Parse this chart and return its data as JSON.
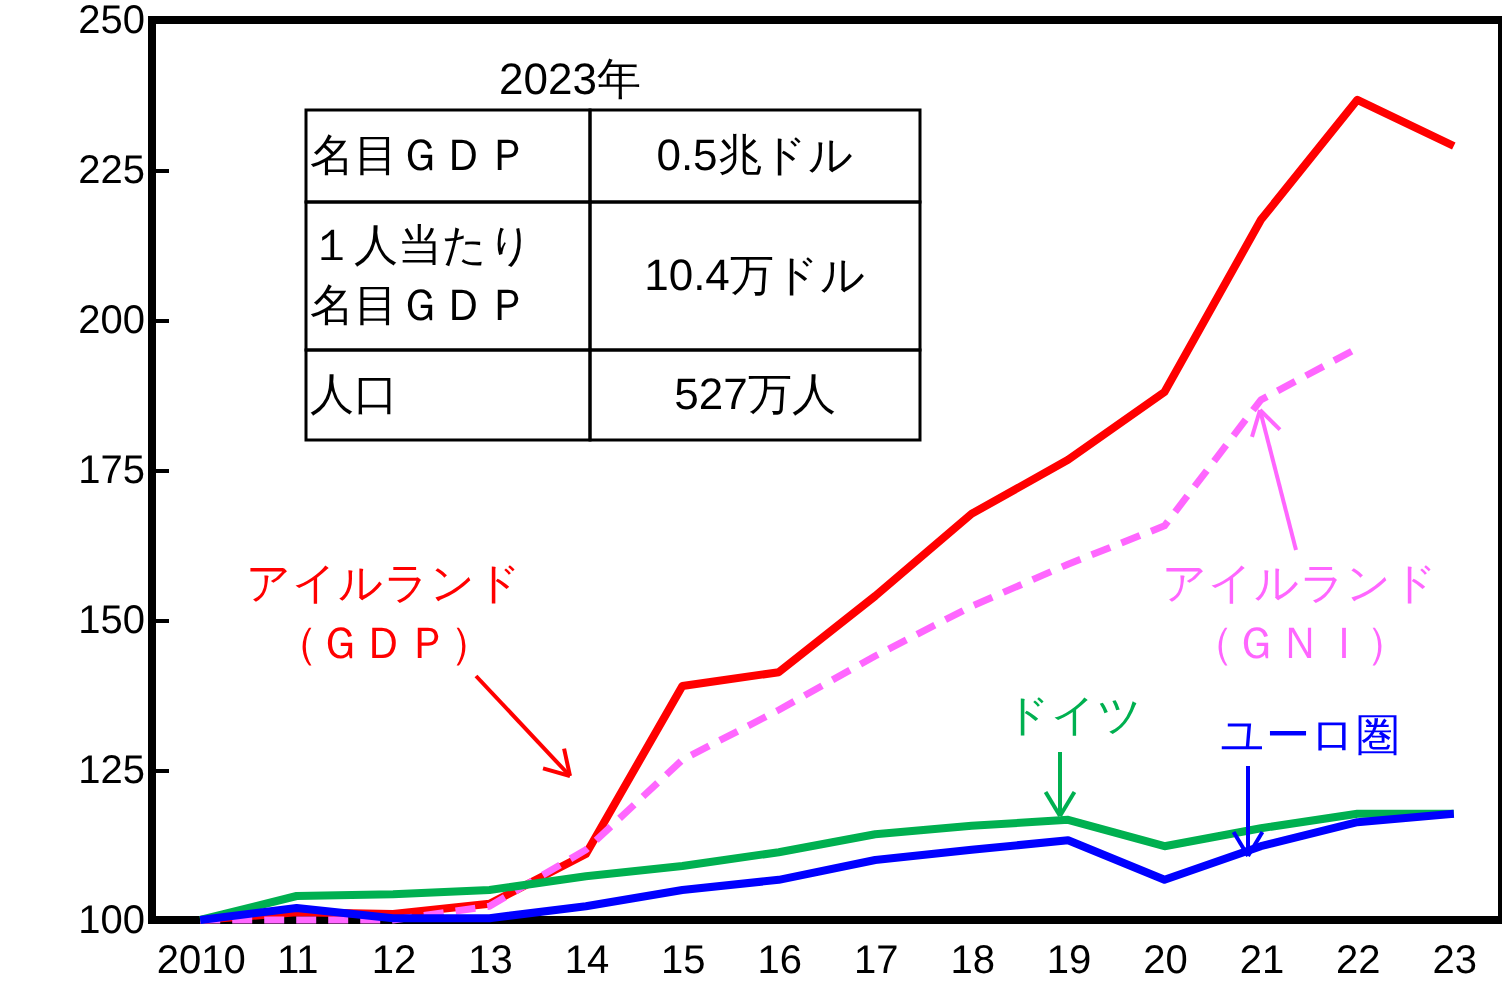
{
  "chart_data": {
    "type": "line",
    "categories": [
      "2010",
      "11",
      "12",
      "13",
      "14",
      "15",
      "16",
      "17",
      "18",
      "19",
      "20",
      "21",
      "22",
      "23"
    ],
    "series": [
      {
        "name": "アイルランド（ＧＤＰ）",
        "color": "#ff0000",
        "values": [
          100,
          101.3,
          101,
          102.7,
          111,
          139,
          141.3,
          154,
          167.7,
          176.7,
          188,
          216.7,
          236.7,
          229
        ]
      },
      {
        "name": "アイルランド（ＧＮＩ）",
        "color": "#ff66ff",
        "line_style": "dashed",
        "values": [
          100,
          100,
          100,
          102.3,
          111.7,
          126.7,
          135,
          144,
          152.3,
          159.3,
          165.7,
          186.7,
          195.3,
          null
        ]
      },
      {
        "name": "ドイツ",
        "color": "#00b050",
        "values": [
          100,
          104,
          104.3,
          105,
          107.3,
          109,
          111.3,
          114.3,
          115.7,
          116.7,
          112.3,
          115.3,
          117.7,
          117.7
        ]
      },
      {
        "name": "ユーロ圏",
        "color": "#0000ff",
        "values": [
          100,
          102,
          100.3,
          100.3,
          102.3,
          105,
          106.7,
          110,
          111.7,
          113.3,
          106.7,
          112.3,
          116.3,
          117.7
        ]
      }
    ],
    "ylim": [
      100,
      250
    ],
    "yticks": [
      100,
      125,
      150,
      175,
      200,
      225,
      250
    ],
    "grid": false,
    "legend": false,
    "marker": "none",
    "annotations": [
      "2023年",
      "名目ＧＤＰ",
      "0.5兆ドル",
      "１人当たり名目ＧＤＰ",
      "10.4万ドル",
      "人口",
      "527万人"
    ]
  }
}
